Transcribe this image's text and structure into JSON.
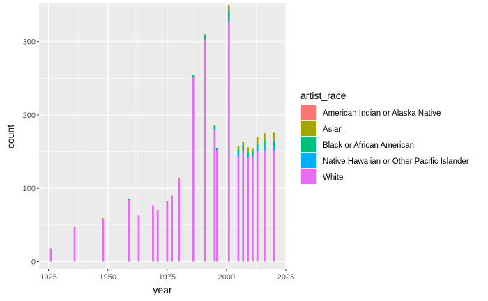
{
  "chart_data": {
    "type": "bar",
    "stacked": true,
    "xlabel": "year",
    "ylabel": "count",
    "xlim": [
      1921,
      2025
    ],
    "ylim": [
      -10,
      352
    ],
    "x_ticks": [
      1925,
      1950,
      1975,
      2000,
      2025
    ],
    "y_ticks": [
      0,
      100,
      200,
      300
    ],
    "grid": true,
    "legend_position": "right",
    "legend_title": "artist_race",
    "series": [
      {
        "name": "American Indian or Alaska Native",
        "color": "#F8766D"
      },
      {
        "name": "Asian",
        "color": "#A3A500"
      },
      {
        "name": "Black or African American",
        "color": "#00BF7D"
      },
      {
        "name": "Native Hawaiian or Other Pacific Islander",
        "color": "#00B0F6"
      },
      {
        "name": "White",
        "color": "#E76BF3"
      }
    ],
    "bars": [
      {
        "x": 1926,
        "values": [
          0,
          0,
          0,
          0,
          18
        ]
      },
      {
        "x": 1936,
        "values": [
          0,
          0,
          0,
          0,
          47
        ]
      },
      {
        "x": 1948,
        "values": [
          0,
          1,
          0,
          0,
          58
        ]
      },
      {
        "x": 1959,
        "values": [
          0,
          1,
          1,
          0,
          84
        ]
      },
      {
        "x": 1963,
        "values": [
          0,
          0,
          0,
          0,
          63
        ]
      },
      {
        "x": 1969,
        "values": [
          0,
          0,
          0,
          0,
          77
        ]
      },
      {
        "x": 1971,
        "values": [
          0,
          0,
          0,
          0,
          70
        ]
      },
      {
        "x": 1975,
        "values": [
          0,
          2,
          1,
          0,
          80
        ]
      },
      {
        "x": 1977,
        "values": [
          0,
          0,
          0,
          0,
          90
        ]
      },
      {
        "x": 1980,
        "values": [
          0,
          1,
          0,
          0,
          113
        ]
      },
      {
        "x": 1986,
        "values": [
          0,
          0,
          3,
          0,
          251
        ]
      },
      {
        "x": 1991,
        "values": [
          0,
          1,
          6,
          1,
          302
        ]
      },
      {
        "x": 1995,
        "values": [
          0,
          1,
          5,
          1,
          179
        ]
      },
      {
        "x": 1996,
        "values": [
          0,
          0,
          3,
          0,
          152
        ]
      },
      {
        "x": 2001,
        "values": [
          0,
          8,
          10,
          6,
          326
        ]
      },
      {
        "x": 2005,
        "values": [
          0,
          5,
          6,
          4,
          143
        ]
      },
      {
        "x": 2007,
        "values": [
          0,
          4,
          5,
          3,
          151
        ]
      },
      {
        "x": 2009,
        "values": [
          0,
          7,
          5,
          3,
          141
        ]
      },
      {
        "x": 2011,
        "values": [
          0,
          3,
          6,
          3,
          142
        ]
      },
      {
        "x": 2013,
        "values": [
          0,
          9,
          7,
          4,
          150
        ]
      },
      {
        "x": 2016,
        "values": [
          0,
          10,
          8,
          5,
          152
        ]
      },
      {
        "x": 2020,
        "values": [
          0,
          11,
          8,
          5,
          152
        ]
      }
    ]
  }
}
